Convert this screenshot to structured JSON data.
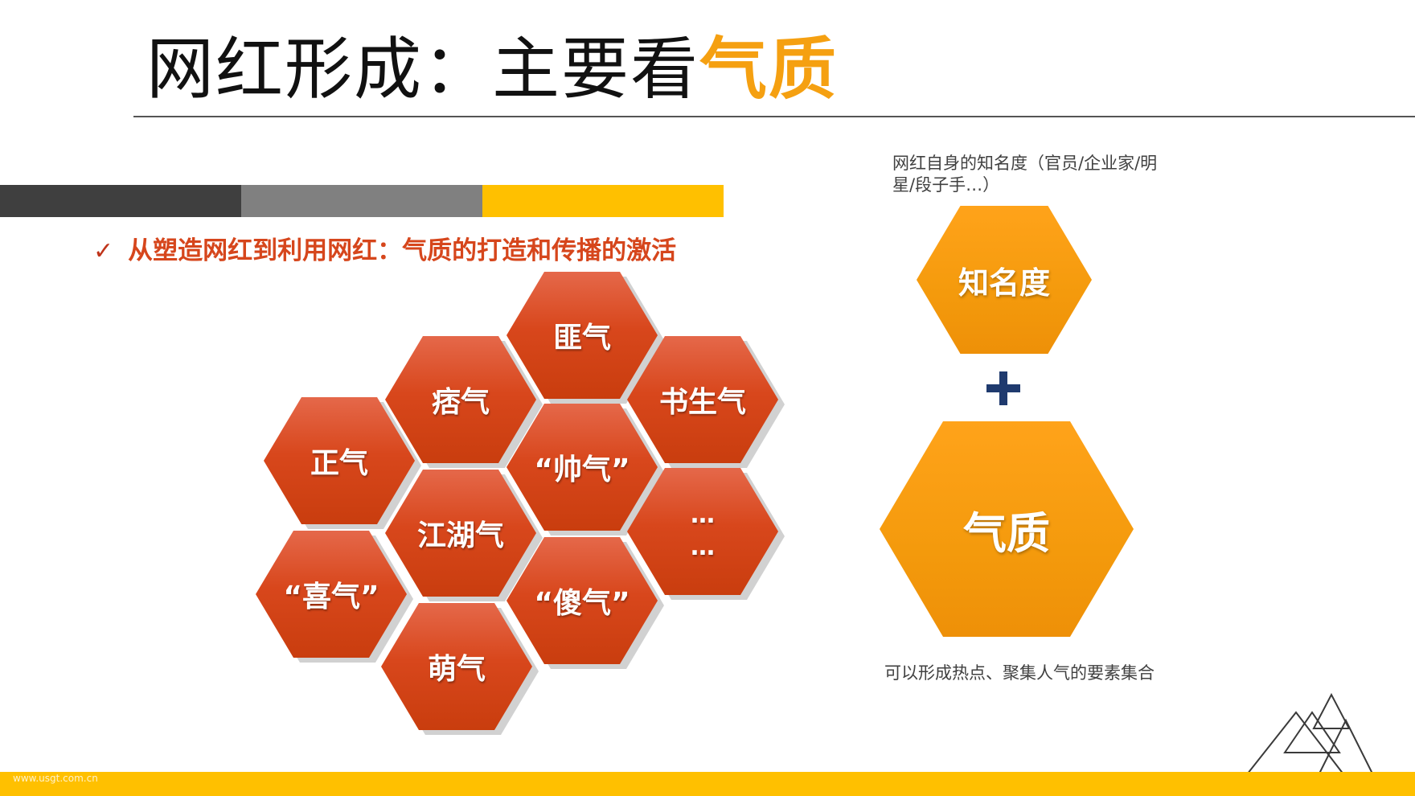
{
  "title": {
    "main": "网红形成：主要看",
    "accent": "气质"
  },
  "subtitle": {
    "check": "✓",
    "text": "从塑造网红到利用网红：气质的打造和传播的激活"
  },
  "hexes": [
    {
      "label": "匪气"
    },
    {
      "label": "痞气"
    },
    {
      "label": "书生气"
    },
    {
      "label": "正气"
    },
    {
      "label": "“帅气”"
    },
    {
      "label": "江湖气"
    },
    {
      "line1": "…",
      "line2": "…"
    },
    {
      "label": "“喜气”"
    },
    {
      "label": "“傻气”"
    },
    {
      "label": "萌气"
    }
  ],
  "right_panel": {
    "caption_top": "网红自身的知名度（官员/企业家/明星/段子手…）",
    "hex_small": "知名度",
    "hex_big": "气质",
    "caption_bottom": "可以形成热点、聚集人气的要素集合"
  },
  "footer": {
    "watermark": "www.usgt.com.cn"
  },
  "colors": {
    "accent": "#F5A011",
    "subtitle": "#D6461C",
    "hex_red": "#D8471C",
    "hex_orange": "#F49A0C",
    "band_dark": "#3F3F3F",
    "band_mid": "#808080",
    "band_yellow": "#FFC000",
    "plus": "#1F3A6E"
  }
}
